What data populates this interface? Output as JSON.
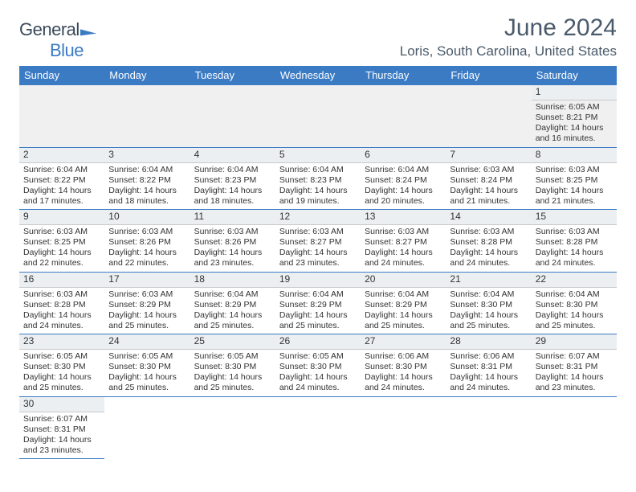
{
  "logo": {
    "word1": "General",
    "word2": "Blue"
  },
  "title": "June 2024",
  "location": "Loris, South Carolina, United States",
  "weekdays": [
    "Sunday",
    "Monday",
    "Tuesday",
    "Wednesday",
    "Thursday",
    "Friday",
    "Saturday"
  ],
  "header_bg": "#3b7bc4",
  "rule_color": "#3b7bc4",
  "weeks": [
    [
      null,
      null,
      null,
      null,
      null,
      null,
      {
        "d": "1",
        "sunrise": "Sunrise: 6:05 AM",
        "sunset": "Sunset: 8:21 PM",
        "day1": "Daylight: 14 hours",
        "day2": "and 16 minutes."
      }
    ],
    [
      {
        "d": "2",
        "sunrise": "Sunrise: 6:04 AM",
        "sunset": "Sunset: 8:22 PM",
        "day1": "Daylight: 14 hours",
        "day2": "and 17 minutes."
      },
      {
        "d": "3",
        "sunrise": "Sunrise: 6:04 AM",
        "sunset": "Sunset: 8:22 PM",
        "day1": "Daylight: 14 hours",
        "day2": "and 18 minutes."
      },
      {
        "d": "4",
        "sunrise": "Sunrise: 6:04 AM",
        "sunset": "Sunset: 8:23 PM",
        "day1": "Daylight: 14 hours",
        "day2": "and 18 minutes."
      },
      {
        "d": "5",
        "sunrise": "Sunrise: 6:04 AM",
        "sunset": "Sunset: 8:23 PM",
        "day1": "Daylight: 14 hours",
        "day2": "and 19 minutes."
      },
      {
        "d": "6",
        "sunrise": "Sunrise: 6:04 AM",
        "sunset": "Sunset: 8:24 PM",
        "day1": "Daylight: 14 hours",
        "day2": "and 20 minutes."
      },
      {
        "d": "7",
        "sunrise": "Sunrise: 6:03 AM",
        "sunset": "Sunset: 8:24 PM",
        "day1": "Daylight: 14 hours",
        "day2": "and 21 minutes."
      },
      {
        "d": "8",
        "sunrise": "Sunrise: 6:03 AM",
        "sunset": "Sunset: 8:25 PM",
        "day1": "Daylight: 14 hours",
        "day2": "and 21 minutes."
      }
    ],
    [
      {
        "d": "9",
        "sunrise": "Sunrise: 6:03 AM",
        "sunset": "Sunset: 8:25 PM",
        "day1": "Daylight: 14 hours",
        "day2": "and 22 minutes."
      },
      {
        "d": "10",
        "sunrise": "Sunrise: 6:03 AM",
        "sunset": "Sunset: 8:26 PM",
        "day1": "Daylight: 14 hours",
        "day2": "and 22 minutes."
      },
      {
        "d": "11",
        "sunrise": "Sunrise: 6:03 AM",
        "sunset": "Sunset: 8:26 PM",
        "day1": "Daylight: 14 hours",
        "day2": "and 23 minutes."
      },
      {
        "d": "12",
        "sunrise": "Sunrise: 6:03 AM",
        "sunset": "Sunset: 8:27 PM",
        "day1": "Daylight: 14 hours",
        "day2": "and 23 minutes."
      },
      {
        "d": "13",
        "sunrise": "Sunrise: 6:03 AM",
        "sunset": "Sunset: 8:27 PM",
        "day1": "Daylight: 14 hours",
        "day2": "and 24 minutes."
      },
      {
        "d": "14",
        "sunrise": "Sunrise: 6:03 AM",
        "sunset": "Sunset: 8:28 PM",
        "day1": "Daylight: 14 hours",
        "day2": "and 24 minutes."
      },
      {
        "d": "15",
        "sunrise": "Sunrise: 6:03 AM",
        "sunset": "Sunset: 8:28 PM",
        "day1": "Daylight: 14 hours",
        "day2": "and 24 minutes."
      }
    ],
    [
      {
        "d": "16",
        "sunrise": "Sunrise: 6:03 AM",
        "sunset": "Sunset: 8:28 PM",
        "day1": "Daylight: 14 hours",
        "day2": "and 24 minutes."
      },
      {
        "d": "17",
        "sunrise": "Sunrise: 6:03 AM",
        "sunset": "Sunset: 8:29 PM",
        "day1": "Daylight: 14 hours",
        "day2": "and 25 minutes."
      },
      {
        "d": "18",
        "sunrise": "Sunrise: 6:04 AM",
        "sunset": "Sunset: 8:29 PM",
        "day1": "Daylight: 14 hours",
        "day2": "and 25 minutes."
      },
      {
        "d": "19",
        "sunrise": "Sunrise: 6:04 AM",
        "sunset": "Sunset: 8:29 PM",
        "day1": "Daylight: 14 hours",
        "day2": "and 25 minutes."
      },
      {
        "d": "20",
        "sunrise": "Sunrise: 6:04 AM",
        "sunset": "Sunset: 8:29 PM",
        "day1": "Daylight: 14 hours",
        "day2": "and 25 minutes."
      },
      {
        "d": "21",
        "sunrise": "Sunrise: 6:04 AM",
        "sunset": "Sunset: 8:30 PM",
        "day1": "Daylight: 14 hours",
        "day2": "and 25 minutes."
      },
      {
        "d": "22",
        "sunrise": "Sunrise: 6:04 AM",
        "sunset": "Sunset: 8:30 PM",
        "day1": "Daylight: 14 hours",
        "day2": "and 25 minutes."
      }
    ],
    [
      {
        "d": "23",
        "sunrise": "Sunrise: 6:05 AM",
        "sunset": "Sunset: 8:30 PM",
        "day1": "Daylight: 14 hours",
        "day2": "and 25 minutes."
      },
      {
        "d": "24",
        "sunrise": "Sunrise: 6:05 AM",
        "sunset": "Sunset: 8:30 PM",
        "day1": "Daylight: 14 hours",
        "day2": "and 25 minutes."
      },
      {
        "d": "25",
        "sunrise": "Sunrise: 6:05 AM",
        "sunset": "Sunset: 8:30 PM",
        "day1": "Daylight: 14 hours",
        "day2": "and 25 minutes."
      },
      {
        "d": "26",
        "sunrise": "Sunrise: 6:05 AM",
        "sunset": "Sunset: 8:30 PM",
        "day1": "Daylight: 14 hours",
        "day2": "and 24 minutes."
      },
      {
        "d": "27",
        "sunrise": "Sunrise: 6:06 AM",
        "sunset": "Sunset: 8:30 PM",
        "day1": "Daylight: 14 hours",
        "day2": "and 24 minutes."
      },
      {
        "d": "28",
        "sunrise": "Sunrise: 6:06 AM",
        "sunset": "Sunset: 8:31 PM",
        "day1": "Daylight: 14 hours",
        "day2": "and 24 minutes."
      },
      {
        "d": "29",
        "sunrise": "Sunrise: 6:07 AM",
        "sunset": "Sunset: 8:31 PM",
        "day1": "Daylight: 14 hours",
        "day2": "and 23 minutes."
      }
    ],
    [
      {
        "d": "30",
        "sunrise": "Sunrise: 6:07 AM",
        "sunset": "Sunset: 8:31 PM",
        "day1": "Daylight: 14 hours",
        "day2": "and 23 minutes."
      },
      null,
      null,
      null,
      null,
      null,
      null
    ]
  ]
}
